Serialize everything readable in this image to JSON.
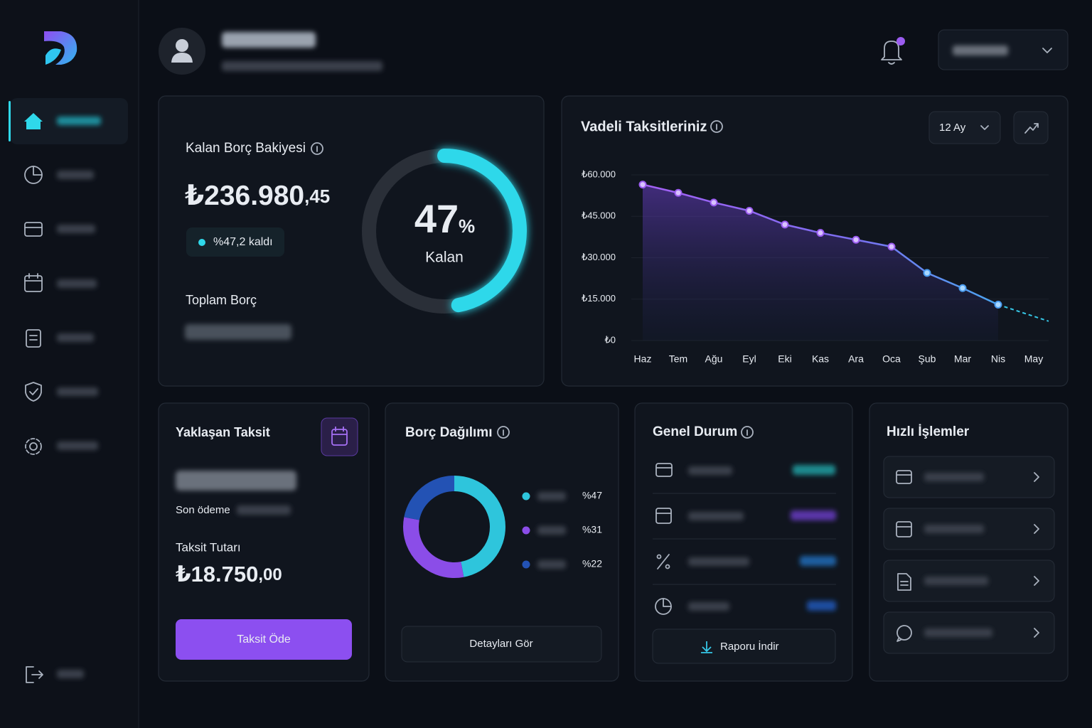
{
  "balance_card": {
    "title": "Kalan Borç Bakiyesi",
    "amount": "₺236.980",
    "amount_decimals": ",45",
    "badge": "%47,2 kaldı",
    "total_label": "Toplam Borç"
  },
  "gauge": {
    "value": 47,
    "unit": "%",
    "label": "Kalan",
    "color": "#2fd8ea"
  },
  "chart_data": [
    {
      "type": "line",
      "title": "Vadeli Taksitleriniz",
      "period": "12 Ay",
      "categories": [
        "Haz",
        "Tem",
        "Ağu",
        "Eyl",
        "Eki",
        "Kas",
        "Ara",
        "Oca",
        "Şub",
        "Mar",
        "Nis",
        "May"
      ],
      "values": [
        56500,
        53500,
        50000,
        47000,
        42000,
        39000,
        36500,
        34000,
        24500,
        19000,
        13000,
        7000
      ],
      "color": "#9b5cf0",
      "ylim": [
        0,
        60000
      ],
      "yticks": [
        {
          "value": 0,
          "label": "₺0"
        },
        {
          "value": 15000,
          "label": "₺15.000"
        },
        {
          "value": 30000,
          "label": "₺30.000"
        },
        {
          "value": 45000,
          "label": "₺45.000"
        },
        {
          "value": 60000,
          "label": "₺60.000"
        }
      ],
      "grid": true
    },
    {
      "type": "donut",
      "title": "Borç Dağılımı",
      "values": [
        47,
        31,
        22
      ],
      "value_labels": [
        "%47",
        "%31",
        "%22"
      ],
      "colors": [
        "#2ec5dc",
        "#8b4de8",
        "#2352b4"
      ],
      "button": "Detayları Gör"
    }
  ],
  "upcoming": {
    "title": "Yaklaşan Taksit",
    "due_label": "Son ödeme",
    "amount_label": "Taksit Tutarı",
    "amount": "₺18.750",
    "amount_decimals": ",00",
    "button": "Taksit Öde"
  },
  "status": {
    "title": "Genel Durum",
    "button": "Raporu İndir"
  },
  "quick": {
    "title": "Hızlı İşlemler"
  }
}
